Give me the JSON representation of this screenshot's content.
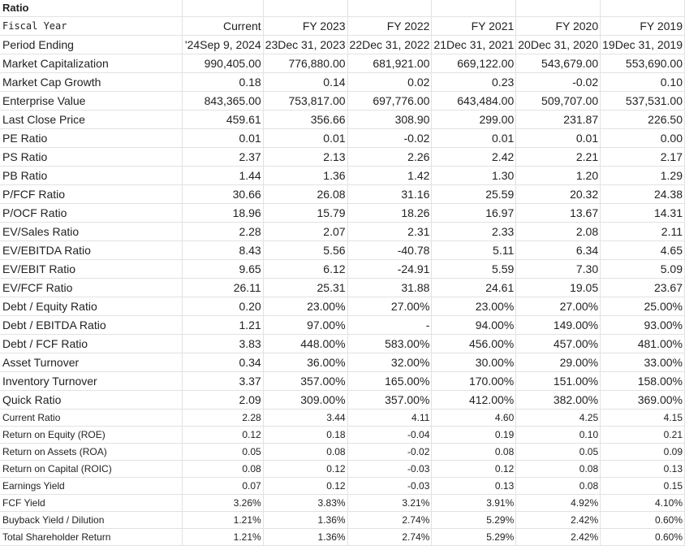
{
  "sheet": {
    "title": "Ratio",
    "rows": [
      {
        "label": "Fiscal Year",
        "style": "mono",
        "values": [
          "Current",
          "FY 2023",
          "FY 2022",
          "FY 2021",
          "FY 2020",
          "FY 2019"
        ]
      },
      {
        "label": "Period Ending",
        "style": "large",
        "values": [
          "'24Sep 9, 2024",
          "23Dec 31, 2023",
          "22Dec 31, 2022",
          "21Dec 31, 2021",
          "20Dec 31, 2020",
          "19Dec 31, 2019"
        ]
      },
      {
        "label": "Market Capitalization",
        "style": "large",
        "values": [
          "990,405.00",
          "776,880.00",
          "681,921.00",
          "669,122.00",
          "543,679.00",
          "553,690.00"
        ]
      },
      {
        "label": "Market Cap Growth",
        "style": "large",
        "values": [
          "0.18",
          "0.14",
          "0.02",
          "0.23",
          "-0.02",
          "0.10"
        ]
      },
      {
        "label": "Enterprise Value",
        "style": "large",
        "values": [
          "843,365.00",
          "753,817.00",
          "697,776.00",
          "643,484.00",
          "509,707.00",
          "537,531.00"
        ]
      },
      {
        "label": "Last Close Price",
        "style": "large",
        "values": [
          "459.61",
          "356.66",
          "308.90",
          "299.00",
          "231.87",
          "226.50"
        ]
      },
      {
        "label": "PE Ratio",
        "style": "large",
        "values": [
          "0.01",
          "0.01",
          "-0.02",
          "0.01",
          "0.01",
          "0.00"
        ]
      },
      {
        "label": "PS Ratio",
        "style": "large",
        "values": [
          "2.37",
          "2.13",
          "2.26",
          "2.42",
          "2.21",
          "2.17"
        ]
      },
      {
        "label": "PB Ratio",
        "style": "large",
        "values": [
          "1.44",
          "1.36",
          "1.42",
          "1.30",
          "1.20",
          "1.29"
        ]
      },
      {
        "label": "P/FCF Ratio",
        "style": "large",
        "values": [
          "30.66",
          "26.08",
          "31.16",
          "25.59",
          "20.32",
          "24.38"
        ]
      },
      {
        "label": "P/OCF Ratio",
        "style": "large",
        "values": [
          "18.96",
          "15.79",
          "18.26",
          "16.97",
          "13.67",
          "14.31"
        ]
      },
      {
        "label": "EV/Sales Ratio",
        "style": "large",
        "values": [
          "2.28",
          "2.07",
          "2.31",
          "2.33",
          "2.08",
          "2.11"
        ]
      },
      {
        "label": "EV/EBITDA Ratio",
        "style": "large",
        "values": [
          "8.43",
          "5.56",
          "-40.78",
          "5.11",
          "6.34",
          "4.65"
        ]
      },
      {
        "label": "EV/EBIT Ratio",
        "style": "large",
        "values": [
          "9.65",
          "6.12",
          "-24.91",
          "5.59",
          "7.30",
          "5.09"
        ]
      },
      {
        "label": "EV/FCF Ratio",
        "style": "large",
        "values": [
          "26.11",
          "25.31",
          "31.88",
          "24.61",
          "19.05",
          "23.67"
        ]
      },
      {
        "label": "Debt / Equity Ratio",
        "style": "large",
        "values": [
          "0.20",
          "23.00%",
          "27.00%",
          "23.00%",
          "27.00%",
          "25.00%"
        ]
      },
      {
        "label": "Debt / EBITDA Ratio",
        "style": "large",
        "values": [
          "1.21",
          "97.00%",
          "-",
          "94.00%",
          "149.00%",
          "93.00%"
        ]
      },
      {
        "label": "Debt / FCF Ratio",
        "style": "large",
        "values": [
          "3.83",
          "448.00%",
          "583.00%",
          "456.00%",
          "457.00%",
          "481.00%"
        ]
      },
      {
        "label": "Asset Turnover",
        "style": "large",
        "values": [
          "0.34",
          "36.00%",
          "32.00%",
          "30.00%",
          "29.00%",
          "33.00%"
        ]
      },
      {
        "label": "Inventory Turnover",
        "style": "large",
        "values": [
          "3.37",
          "357.00%",
          "165.00%",
          "170.00%",
          "151.00%",
          "158.00%"
        ]
      },
      {
        "label": "Quick Ratio",
        "style": "large",
        "values": [
          "2.09",
          "309.00%",
          "357.00%",
          "412.00%",
          "382.00%",
          "369.00%"
        ]
      },
      {
        "label": "Current Ratio",
        "style": "small",
        "values": [
          "2.28",
          "3.44",
          "4.11",
          "4.60",
          "4.25",
          "4.15"
        ]
      },
      {
        "label": "Return on Equity (ROE)",
        "style": "small",
        "values": [
          "0.12",
          "0.18",
          "-0.04",
          "0.19",
          "0.10",
          "0.21"
        ]
      },
      {
        "label": "Return on Assets (ROA)",
        "style": "small",
        "values": [
          "0.05",
          "0.08",
          "-0.02",
          "0.08",
          "0.05",
          "0.09"
        ]
      },
      {
        "label": "Return on Capital (ROIC)",
        "style": "small",
        "values": [
          "0.08",
          "0.12",
          "-0.03",
          "0.12",
          "0.08",
          "0.13"
        ]
      },
      {
        "label": "Earnings Yield",
        "style": "small",
        "values": [
          "0.07",
          "0.12",
          "-0.03",
          "0.13",
          "0.08",
          "0.15"
        ]
      },
      {
        "label": "FCF Yield",
        "style": "small",
        "values": [
          "3.26%",
          "3.83%",
          "3.21%",
          "3.91%",
          "4.92%",
          "4.10%"
        ]
      },
      {
        "label": "Buyback Yield / Dilution",
        "style": "small",
        "values": [
          "1.21%",
          "1.36%",
          "2.74%",
          "5.29%",
          "2.42%",
          "0.60%"
        ]
      },
      {
        "label": "Total Shareholder Return",
        "style": "small",
        "values": [
          "1.21%",
          "1.36%",
          "2.74%",
          "5.29%",
          "2.42%",
          "0.60%"
        ]
      }
    ]
  }
}
